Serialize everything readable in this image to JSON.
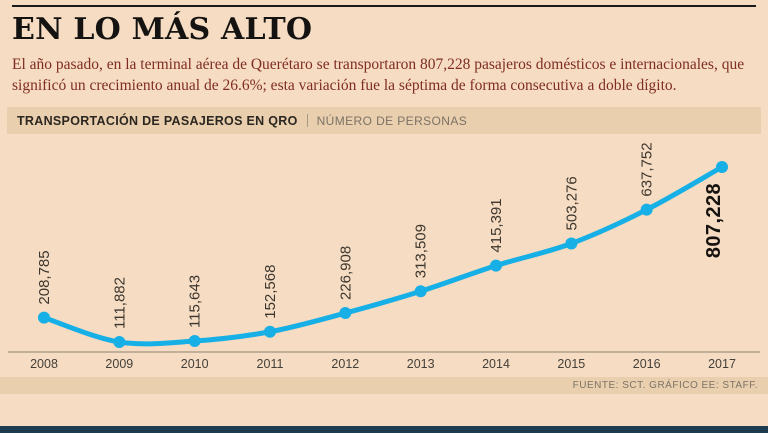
{
  "page": {
    "title": "EN LO MÁS ALTO",
    "intro": "El año pasado, en la terminal aérea de Querétaro se transportaron 807,228 pasajeros domésticos e internacionales, que significó un crecimiento anual de 26.6%; esta variación fue la séptima de forma consecutiva a doble dígito."
  },
  "chart_header": {
    "title": "TRANSPORTACIÓN DE PASAJEROS EN QRO",
    "subtitle": "NÚMERO DE PERSONAS"
  },
  "chart_data": {
    "type": "line",
    "title": "TRANSPORTACIÓN DE PASAJEROS EN QRO",
    "ylabel": "NÚMERO DE PERSONAS",
    "categories": [
      "2008",
      "2009",
      "2010",
      "2011",
      "2012",
      "2013",
      "2014",
      "2015",
      "2016",
      "2017"
    ],
    "values": [
      208785,
      111882,
      115643,
      152568,
      226908,
      313509,
      415391,
      503276,
      637752,
      807228
    ],
    "value_labels": [
      "208,785",
      "111,882",
      "115,643",
      "152,568",
      "226,908",
      "313,509",
      "415,391",
      "503,276",
      "637,752",
      "807,228"
    ],
    "highlight_index": 9,
    "line_color": "#17b0e6",
    "grid": false,
    "legend": false,
    "ylim": [
      0,
      850000
    ]
  },
  "footer": {
    "source": "FUENTE: SCT.  GRÁFICO EE: STAFF."
  },
  "colors": {
    "background": "#f6dcc2",
    "band": "#e9cfae",
    "line": "#17b0e6",
    "accent_bar": "#1d3c50",
    "intro_text": "#7f2d22"
  }
}
